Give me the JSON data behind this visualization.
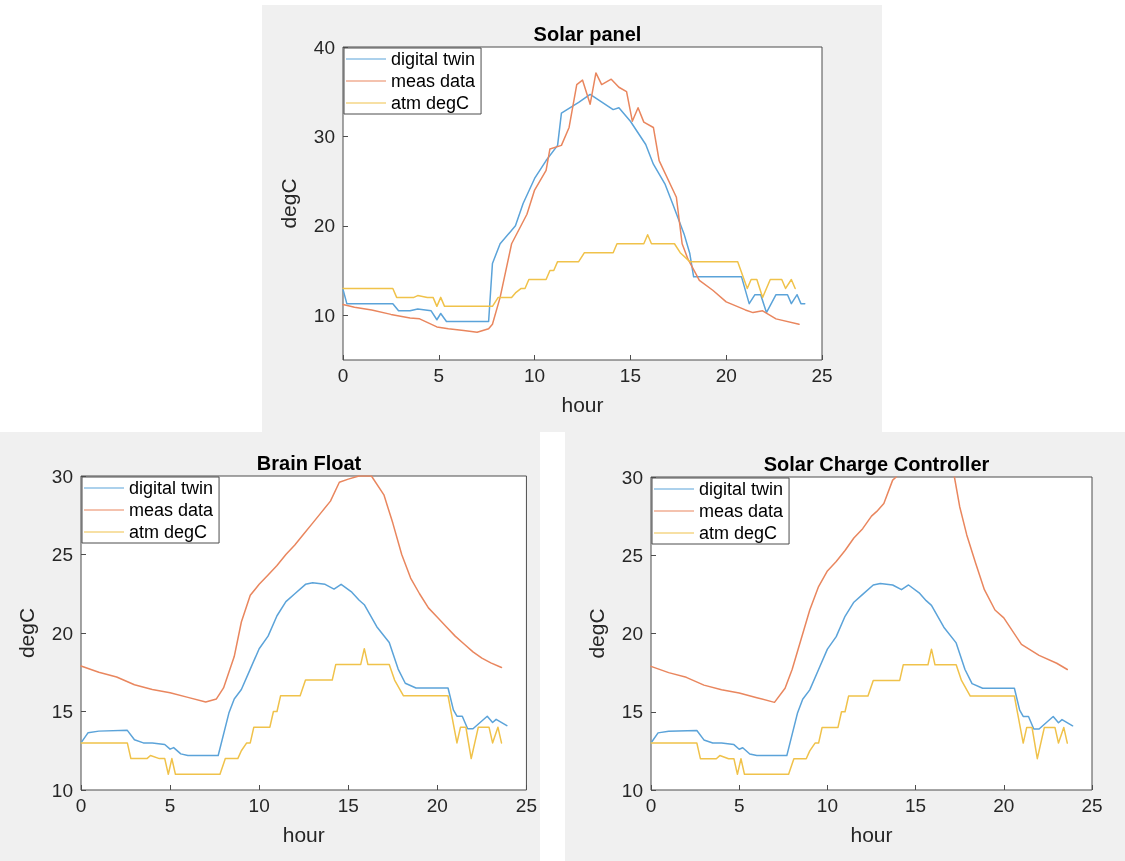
{
  "chart_data": [
    {
      "type": "line",
      "title": "Solar panel",
      "xlabel": "hour",
      "ylabel": "degC",
      "xlim": [
        0,
        25
      ],
      "xticks": [
        0,
        5,
        10,
        15,
        20,
        25
      ],
      "ylim": [
        5,
        40
      ],
      "yticks": [
        10,
        20,
        30,
        40
      ],
      "grid": false,
      "legend": "top left",
      "marker": "none",
      "line_style": "solid",
      "series": [
        {
          "name": "digital twin",
          "color": "#5ba3d9",
          "x": [
            0,
            0.2,
            2.6,
            2.9,
            3.5,
            3.9,
            4.6,
            4.9,
            5.1,
            5.4,
            7.6,
            7.8,
            8.2,
            9,
            9.4,
            10,
            10.6,
            11.2,
            11.4,
            12.3,
            12.9,
            14.1,
            14.4,
            15,
            15.8,
            16.2,
            16.8,
            17.2,
            17.8,
            18.1,
            18.3,
            20.8,
            21.2,
            21.5,
            21.8,
            22.1,
            22.6,
            23.2,
            23.4,
            23.7,
            23.9,
            24.1
          ],
          "values": [
            12.9,
            11.3,
            11.3,
            10.5,
            10.5,
            10.7,
            10.5,
            9.5,
            10.2,
            9.3,
            9.3,
            15.8,
            18,
            20,
            22.5,
            25.3,
            27.3,
            29,
            32.6,
            33.8,
            34.7,
            33,
            33.2,
            31.7,
            29.1,
            26.9,
            24.7,
            22.5,
            19.1,
            16.9,
            14.3,
            14.3,
            11.3,
            12.3,
            12.3,
            10.3,
            12.3,
            12.3,
            11.3,
            12.3,
            11.3,
            11.3
          ]
        },
        {
          "name": "meas data",
          "color": "#e9865e",
          "x": [
            0,
            0.6,
            1.5,
            2.5,
            3.5,
            4,
            4.9,
            5.5,
            6.3,
            7,
            7.6,
            7.8,
            8.2,
            8.8,
            9.6,
            10,
            10.6,
            10.8,
            11.4,
            11.8,
            12.2,
            12.5,
            12.9,
            13.2,
            13.5,
            14,
            14.4,
            14.8,
            15.1,
            15.4,
            15.7,
            16.2,
            16.5,
            17.4,
            17.7,
            18,
            18.6,
            19.3,
            20,
            21,
            21.4,
            21.9,
            22.6,
            23.8
          ],
          "values": [
            11.2,
            10.9,
            10.6,
            10.1,
            9.7,
            9.6,
            8.7,
            8.5,
            8.3,
            8.1,
            8.5,
            9,
            12,
            18,
            21.3,
            24,
            26.2,
            28.6,
            29,
            31,
            35.8,
            36.3,
            33.6,
            37.1,
            35.8,
            36.4,
            35.5,
            35,
            31.7,
            33.2,
            31.6,
            31,
            27.3,
            23.2,
            18,
            16.3,
            13.9,
            12.8,
            11.5,
            10.6,
            10.3,
            10.5,
            9.6,
            9
          ]
        },
        {
          "name": "atm degC",
          "color": "#f0c24a",
          "x": [
            0,
            2.6,
            2.8,
            3.7,
            3.9,
            4.4,
            4.7,
            4.9,
            5.1,
            5.3,
            7.8,
            8.1,
            8.8,
            9.0,
            9.3,
            9.5,
            9.7,
            10.6,
            10.8,
            11.0,
            11.2,
            12.3,
            12.6,
            14.1,
            14.3,
            15.7,
            15.9,
            16.1,
            17.3,
            17.6,
            18.1,
            20.6,
            21.1,
            21.3,
            21.6,
            21.9,
            22.3,
            22.9,
            23.1,
            23.4,
            23.6
          ],
          "values": [
            13,
            13,
            12,
            12,
            12.2,
            12,
            12,
            11,
            12,
            11,
            11,
            12,
            12,
            12.5,
            13,
            13,
            14,
            14,
            15,
            15,
            16,
            16,
            17,
            17,
            18,
            18,
            19,
            18,
            18,
            17,
            16,
            16,
            13,
            14,
            14,
            12,
            14,
            14,
            13,
            14,
            13
          ]
        }
      ]
    },
    {
      "type": "line",
      "title": "Brain Float",
      "xlabel": "hour",
      "ylabel": "degC",
      "xlim": [
        0,
        25
      ],
      "xticks": [
        0,
        5,
        10,
        15,
        20,
        25
      ],
      "ylim": [
        10,
        30
      ],
      "yticks": [
        10,
        15,
        20,
        25,
        30
      ],
      "grid": false,
      "legend": "top left",
      "marker": "none",
      "line_style": "solid",
      "series": [
        {
          "name": "digital twin",
          "color": "#5ba3d9",
          "x": [
            0,
            0.4,
            1,
            2.6,
            3,
            3.5,
            4,
            4.7,
            5,
            5.2,
            5.6,
            6,
            7.7,
            8.3,
            8.6,
            9,
            9.5,
            10,
            10.5,
            11,
            11.5,
            12,
            12.6,
            13,
            13.7,
            14.2,
            14.6,
            15.2,
            15.6,
            15.9,
            16.6,
            17.3,
            17.8,
            18.2,
            18.8,
            20.6,
            20.9,
            21.1,
            21.4,
            21.7,
            22,
            22.4,
            22.8,
            23.1,
            23.3,
            23.9
          ],
          "values": [
            13,
            13.65,
            13.75,
            13.8,
            13.2,
            13,
            13,
            12.9,
            12.6,
            12.7,
            12.3,
            12.2,
            12.2,
            14.9,
            15.8,
            16.4,
            17.7,
            19,
            19.8,
            21.1,
            22,
            22.5,
            23.1,
            23.2,
            23.1,
            22.8,
            23.1,
            22.6,
            22.1,
            21.8,
            20.4,
            19.4,
            17.7,
            16.8,
            16.5,
            16.5,
            15.1,
            14.7,
            14.7,
            13.9,
            13.9,
            14.3,
            14.7,
            14.3,
            14.5,
            14.1
          ]
        },
        {
          "name": "meas data",
          "color": "#e9865e",
          "x": [
            0,
            1,
            2,
            3,
            4,
            5,
            6,
            7,
            7.6,
            8,
            8.6,
            9,
            9.5,
            10,
            10.5,
            11,
            11.5,
            12,
            12.5,
            13,
            13.5,
            14,
            14.5,
            15,
            15.6,
            16.3,
            17,
            17.5,
            18,
            18.5,
            19,
            19.5,
            20,
            20.5,
            21,
            21.5,
            22,
            22.5,
            23,
            23.6
          ],
          "values": [
            17.9,
            17.5,
            17.2,
            16.7,
            16.4,
            16.2,
            15.9,
            15.6,
            15.8,
            16.5,
            18.5,
            20.7,
            22.4,
            23.1,
            23.7,
            24.3,
            25,
            25.6,
            26.3,
            27,
            27.7,
            28.4,
            29.6,
            29.8,
            30,
            30,
            28.8,
            27,
            25,
            23.5,
            22.5,
            21.6,
            21,
            20.4,
            19.8,
            19.3,
            18.8,
            18.4,
            18.1,
            17.8
          ]
        },
        {
          "name": "atm degC",
          "color": "#f0c24a",
          "x": [
            0,
            2.6,
            2.8,
            3.7,
            3.9,
            4.4,
            4.7,
            4.9,
            5.1,
            5.3,
            7.8,
            8.1,
            8.8,
            9.0,
            9.3,
            9.5,
            9.7,
            10.6,
            10.8,
            11.0,
            11.2,
            12.3,
            12.6,
            14.1,
            14.3,
            15.7,
            15.9,
            16.1,
            17.3,
            17.6,
            18.1,
            20.6,
            21.1,
            21.3,
            21.6,
            21.9,
            22.3,
            22.9,
            23.1,
            23.4,
            23.6
          ],
          "values": [
            13,
            13,
            12,
            12,
            12.2,
            12,
            12,
            11,
            12,
            11,
            11,
            12,
            12,
            12.5,
            13,
            13,
            14,
            14,
            15,
            15,
            16,
            16,
            17,
            17,
            18,
            18,
            19,
            18,
            18,
            17,
            16,
            16,
            13,
            14,
            14,
            12,
            14,
            14,
            13,
            14,
            13
          ]
        }
      ]
    },
    {
      "type": "line",
      "title": "Solar Charge Controller",
      "xlabel": "hour",
      "ylabel": "degC",
      "xlim": [
        0,
        25
      ],
      "xticks": [
        0,
        5,
        10,
        15,
        20,
        25
      ],
      "ylim": [
        10,
        30
      ],
      "yticks": [
        10,
        15,
        20,
        25,
        30
      ],
      "grid": false,
      "legend": "top left",
      "marker": "none",
      "line_style": "solid",
      "series": [
        {
          "name": "digital twin",
          "color": "#5ba3d9",
          "x": [
            0,
            0.4,
            1,
            2.6,
            3,
            3.5,
            4,
            4.7,
            5,
            5.2,
            5.6,
            6,
            7.7,
            8.3,
            8.6,
            9,
            9.5,
            10,
            10.5,
            11,
            11.5,
            12,
            12.6,
            13,
            13.7,
            14.2,
            14.6,
            15.2,
            15.6,
            15.9,
            16.6,
            17.3,
            17.8,
            18.2,
            18.8,
            20.6,
            20.9,
            21.1,
            21.4,
            21.7,
            22,
            22.4,
            22.8,
            23.1,
            23.3,
            23.9
          ],
          "values": [
            13,
            13.65,
            13.75,
            13.8,
            13.2,
            13,
            13,
            12.9,
            12.6,
            12.7,
            12.3,
            12.2,
            12.2,
            14.9,
            15.8,
            16.4,
            17.7,
            19,
            19.8,
            21.1,
            22,
            22.5,
            23.1,
            23.2,
            23.1,
            22.8,
            23.1,
            22.6,
            22.1,
            21.8,
            20.4,
            19.4,
            17.7,
            16.8,
            16.5,
            16.5,
            15.1,
            14.7,
            14.7,
            13.9,
            13.9,
            14.3,
            14.7,
            14.3,
            14.5,
            14.1
          ]
        },
        {
          "name": "meas data",
          "color": "#e9865e",
          "x": [
            0,
            1,
            2,
            3,
            4,
            5,
            6,
            7,
            7.6,
            8,
            9,
            9.5,
            10,
            10.5,
            11,
            11.5,
            12,
            12.5,
            12.8,
            13.2,
            13.7,
            13.9,
            15.5,
            17.2,
            17.5,
            17.9,
            18.4,
            18.9,
            19.5,
            20,
            21,
            22,
            23,
            23.6
          ],
          "values": [
            17.9,
            17.5,
            17.2,
            16.7,
            16.4,
            16.2,
            15.9,
            15.6,
            16.5,
            17.7,
            21.5,
            23,
            24,
            24.6,
            25.3,
            26.1,
            26.7,
            27.5,
            27.8,
            28.3,
            29.8,
            30,
            null,
            30,
            28.1,
            26.3,
            24.5,
            22.8,
            21.5,
            21,
            19.3,
            18.6,
            18.1,
            17.7
          ]
        },
        {
          "name": "atm degC",
          "color": "#f0c24a",
          "x": [
            0,
            2.6,
            2.8,
            3.7,
            3.9,
            4.4,
            4.7,
            4.9,
            5.1,
            5.3,
            7.8,
            8.1,
            8.8,
            9.0,
            9.3,
            9.5,
            9.7,
            10.6,
            10.8,
            11.0,
            11.2,
            12.3,
            12.6,
            14.1,
            14.3,
            15.7,
            15.9,
            16.1,
            17.3,
            17.6,
            18.1,
            20.6,
            21.1,
            21.3,
            21.6,
            21.9,
            22.3,
            22.9,
            23.1,
            23.4,
            23.6
          ],
          "values": [
            13,
            13,
            12,
            12,
            12.2,
            12,
            12,
            11,
            12,
            11,
            11,
            12,
            12,
            12.5,
            13,
            13,
            14,
            14,
            15,
            15,
            16,
            16,
            17,
            17,
            18,
            18,
            19,
            18,
            18,
            17,
            16,
            16,
            13,
            14,
            14,
            12,
            14,
            14,
            13,
            14,
            13
          ]
        }
      ]
    }
  ]
}
